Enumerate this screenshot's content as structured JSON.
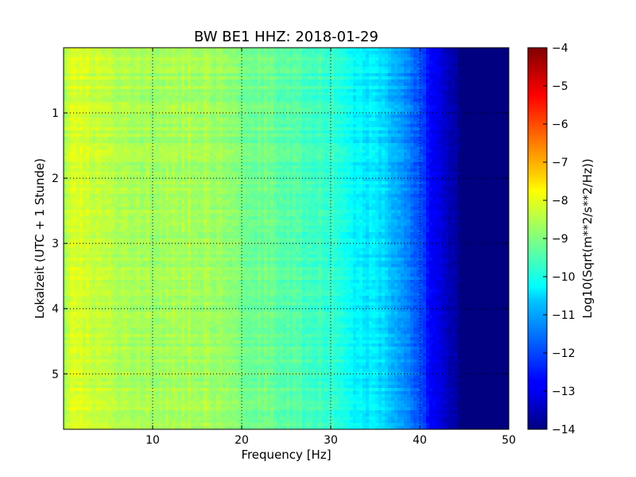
{
  "chart_data": {
    "type": "heatmap",
    "title": "BW BE1 HHZ: 2018-01-29",
    "xlabel": "Frequency [Hz]",
    "ylabel": "Lokalzeit (UTC + 1 Stunde)",
    "colorbar_label": "Log10(Sqrt(m**2/s**2/Hz))",
    "colormap": "jet",
    "xlim": [
      0,
      50
    ],
    "ylim": [
      5.85,
      0
    ],
    "y_inverted": true,
    "clim": [
      -14,
      -4
    ],
    "grid": true,
    "x_ticks": [
      10,
      20,
      30,
      40,
      50
    ],
    "x_tick_labels": [
      "10",
      "20",
      "30",
      "40",
      "50"
    ],
    "y_ticks": [
      1,
      2,
      3,
      4,
      5
    ],
    "y_tick_labels": [
      "1",
      "2",
      "3",
      "4",
      "5"
    ],
    "colorbar_ticks": [
      -4,
      -5,
      -6,
      -7,
      -8,
      -9,
      -10,
      -11,
      -12,
      -13,
      -14
    ],
    "colorbar_tick_labels": [
      "−4",
      "−5",
      "−6",
      "−7",
      "−8",
      "−9",
      "−10",
      "−11",
      "−12",
      "−13",
      "−14"
    ],
    "spectrum_profile": {
      "frequency_hz": [
        0,
        1,
        2,
        4,
        8,
        12,
        16,
        20,
        24,
        28,
        30,
        32,
        34,
        36,
        38,
        40,
        41,
        42,
        43,
        44,
        45,
        50
      ],
      "log10_amplitude": [
        -8.8,
        -7.9,
        -8.1,
        -8.4,
        -8.6,
        -8.6,
        -8.6,
        -9.0,
        -9.3,
        -9.6,
        -9.7,
        -10.2,
        -10.4,
        -10.6,
        -11.2,
        -12.0,
        -12.6,
        -13.0,
        -13.4,
        -13.7,
        -14.0,
        -14.0
      ]
    }
  }
}
